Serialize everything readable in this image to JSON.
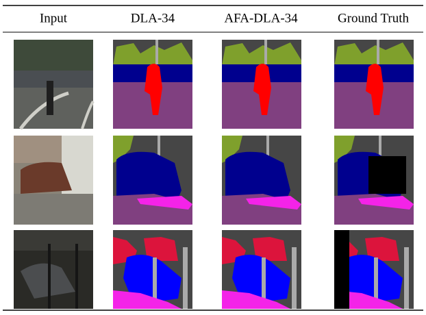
{
  "table": {
    "headers": [
      "Input",
      "DLA-34",
      "AFA-DLA-34",
      "Ground Truth"
    ]
  }
}
